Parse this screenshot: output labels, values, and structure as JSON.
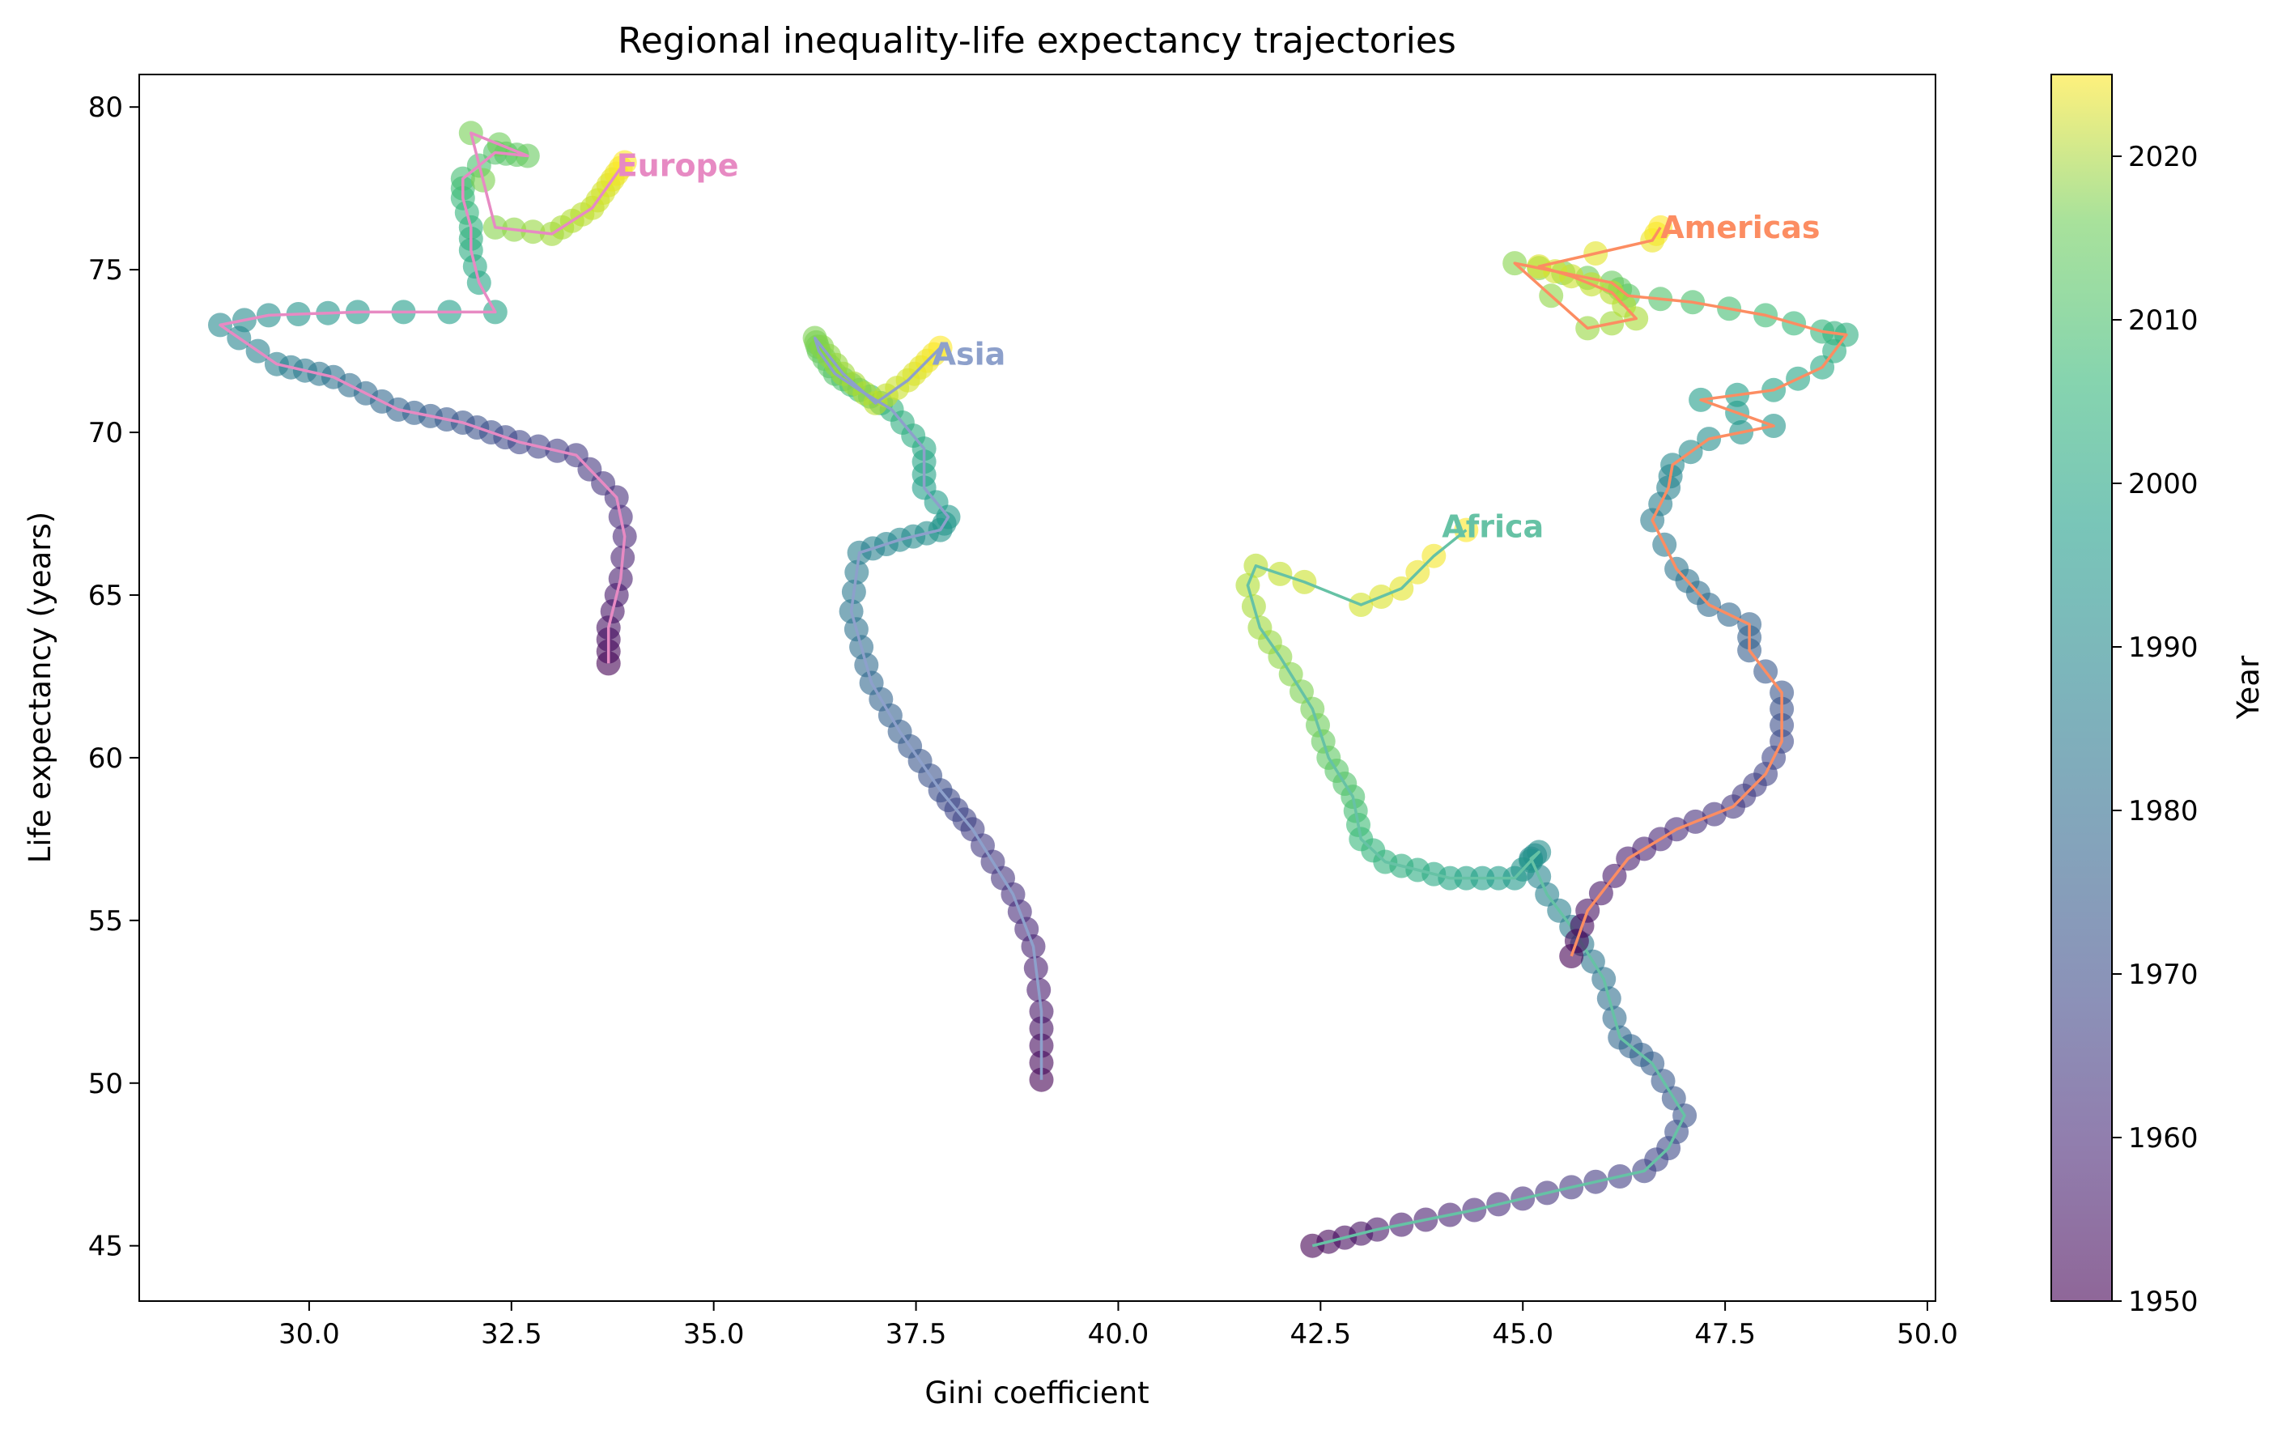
{
  "chart_data": {
    "type": "scatter",
    "title": "Regional inequality-life expectancy trajectories",
    "xlabel": "Gini coefficient",
    "ylabel": "Life expectancy (years)",
    "xlim": [
      27.9,
      50.1
    ],
    "ylim": [
      43.3,
      81.0
    ],
    "xticks": [
      30.0,
      32.5,
      35.0,
      37.5,
      40.0,
      42.5,
      45.0,
      47.5,
      50.0
    ],
    "xtick_labels": [
      "30.0",
      "32.5",
      "35.0",
      "37.5",
      "40.0",
      "42.5",
      "45.0",
      "47.5",
      "50.0"
    ],
    "yticks": [
      45,
      50,
      55,
      60,
      65,
      70,
      75,
      80
    ],
    "ytick_labels": [
      "45",
      "50",
      "55",
      "60",
      "65",
      "70",
      "75",
      "80"
    ],
    "grid": false,
    "colorbar": {
      "label": "Year",
      "colormap": "viridis",
      "alpha": 0.6,
      "range": [
        1950,
        2025
      ],
      "ticks": [
        1950,
        1960,
        1970,
        1980,
        1990,
        2000,
        2010,
        2020
      ],
      "tick_labels": [
        "1950",
        "1960",
        "1970",
        "1980",
        "1990",
        "2000",
        "2010",
        "2020"
      ]
    },
    "series": [
      {
        "name": "Europe",
        "color": "#e78ac3",
        "label_at": [
          33.8,
          78.2
        ],
        "keyframes": [
          [
            1950,
            33.7,
            62.9
          ],
          [
            1953,
            33.7,
            64.0
          ],
          [
            1956,
            33.85,
            65.5
          ],
          [
            1958,
            33.9,
            66.8
          ],
          [
            1960,
            33.8,
            68.0
          ],
          [
            1963,
            33.3,
            69.3
          ],
          [
            1966,
            32.6,
            69.7
          ],
          [
            1970,
            31.9,
            70.3
          ],
          [
            1974,
            31.1,
            70.7
          ],
          [
            1978,
            30.3,
            71.7
          ],
          [
            1982,
            29.6,
            72.1
          ],
          [
            1985,
            28.9,
            73.3
          ],
          [
            1987,
            29.5,
            73.6
          ],
          [
            1990,
            30.6,
            73.7
          ],
          [
            1993,
            32.3,
            73.7
          ],
          [
            1994,
            32.1,
            74.6
          ],
          [
            1996,
            32.0,
            75.6
          ],
          [
            1998,
            32.0,
            76.3
          ],
          [
            2000,
            31.9,
            77.2
          ],
          [
            2002,
            31.9,
            77.8
          ],
          [
            2004,
            32.3,
            78.6
          ],
          [
            2007,
            32.7,
            78.5
          ],
          [
            2009,
            32.0,
            79.2
          ],
          [
            2011,
            32.3,
            76.3
          ],
          [
            2014,
            33.0,
            76.1
          ],
          [
            2018,
            33.5,
            76.9
          ],
          [
            2021,
            33.7,
            77.6
          ],
          [
            2025,
            33.9,
            78.3
          ]
        ]
      },
      {
        "name": "Asia",
        "color": "#8da0cb",
        "label_at": [
          37.7,
          72.4
        ],
        "keyframes": [
          [
            1950,
            39.05,
            50.1
          ],
          [
            1954,
            39.05,
            52.2
          ],
          [
            1957,
            38.95,
            54.2
          ],
          [
            1960,
            38.7,
            55.8
          ],
          [
            1964,
            38.2,
            57.8
          ],
          [
            1968,
            37.8,
            59.0
          ],
          [
            1972,
            37.3,
            60.8
          ],
          [
            1975,
            36.95,
            62.3
          ],
          [
            1979,
            36.7,
            64.5
          ],
          [
            1982,
            36.8,
            66.3
          ],
          [
            1985,
            37.3,
            66.7
          ],
          [
            1988,
            37.8,
            67.0
          ],
          [
            1990,
            37.9,
            67.4
          ],
          [
            1992,
            37.6,
            68.3
          ],
          [
            1995,
            37.6,
            69.5
          ],
          [
            1998,
            37.2,
            70.7
          ],
          [
            2001,
            36.8,
            71.3
          ],
          [
            2004,
            36.5,
            71.8
          ],
          [
            2007,
            36.3,
            72.5
          ],
          [
            2010,
            36.25,
            72.9
          ],
          [
            2014,
            36.6,
            71.8
          ],
          [
            2017,
            37.0,
            70.9
          ],
          [
            2020,
            37.4,
            71.6
          ],
          [
            2025,
            37.8,
            72.6
          ]
        ]
      },
      {
        "name": "Africa",
        "color": "#66c2a5",
        "label_at": [
          44.0,
          67.1
        ],
        "keyframes": [
          [
            1950,
            42.4,
            45.0
          ],
          [
            1954,
            43.2,
            45.5
          ],
          [
            1958,
            44.4,
            46.1
          ],
          [
            1962,
            45.6,
            46.8
          ],
          [
            1965,
            46.5,
            47.3
          ],
          [
            1967,
            46.8,
            48.0
          ],
          [
            1969,
            47.0,
            49.0
          ],
          [
            1972,
            46.6,
            50.6
          ],
          [
            1975,
            46.2,
            51.4
          ],
          [
            1978,
            46.0,
            53.2
          ],
          [
            1981,
            45.6,
            54.8
          ],
          [
            1983,
            45.3,
            55.8
          ],
          [
            1985,
            45.1,
            56.9
          ],
          [
            1987,
            45.2,
            57.1
          ],
          [
            1990,
            44.9,
            56.3
          ],
          [
            1994,
            44.1,
            56.3
          ],
          [
            1998,
            43.3,
            56.8
          ],
          [
            2000,
            43.0,
            57.5
          ],
          [
            2003,
            42.9,
            58.8
          ],
          [
            2006,
            42.6,
            60.0
          ],
          [
            2009,
            42.4,
            61.5
          ],
          [
            2012,
            42.0,
            63.1
          ],
          [
            2014,
            41.75,
            64.0
          ],
          [
            2016,
            41.6,
            65.3
          ],
          [
            2017,
            41.7,
            65.9
          ],
          [
            2019,
            42.3,
            65.4
          ],
          [
            2020,
            43.0,
            64.7
          ],
          [
            2022,
            43.5,
            65.2
          ],
          [
            2024,
            43.9,
            66.2
          ],
          [
            2025,
            44.3,
            67.0
          ]
        ]
      },
      {
        "name": "Americas",
        "color": "#fc8d62",
        "label_at": [
          46.7,
          76.3
        ],
        "keyframes": [
          [
            1950,
            45.6,
            53.9
          ],
          [
            1953,
            45.8,
            55.3
          ],
          [
            1956,
            46.3,
            56.9
          ],
          [
            1959,
            46.9,
            57.8
          ],
          [
            1962,
            47.6,
            58.5
          ],
          [
            1965,
            48.0,
            59.5
          ],
          [
            1967,
            48.2,
            60.5
          ],
          [
            1970,
            48.2,
            62.0
          ],
          [
            1972,
            47.8,
            63.3
          ],
          [
            1974,
            47.8,
            64.1
          ],
          [
            1976,
            47.3,
            64.7
          ],
          [
            1979,
            46.9,
            65.8
          ],
          [
            1981,
            46.6,
            67.3
          ],
          [
            1983,
            46.8,
            68.3
          ],
          [
            1985,
            46.85,
            69.0
          ],
          [
            1987,
            47.3,
            69.8
          ],
          [
            1989,
            48.1,
            70.2
          ],
          [
            1991,
            47.2,
            71.0
          ],
          [
            1993,
            48.1,
            71.3
          ],
          [
            1995,
            48.7,
            72.0
          ],
          [
            1997,
            49.0,
            73.0
          ],
          [
            1999,
            48.7,
            73.1
          ],
          [
            2001,
            48.0,
            73.6
          ],
          [
            2003,
            47.1,
            74.0
          ],
          [
            2005,
            46.3,
            74.2
          ],
          [
            2007,
            46.1,
            74.6
          ],
          [
            2009,
            45.5,
            74.9
          ],
          [
            2011,
            44.9,
            75.2
          ],
          [
            2013,
            45.8,
            73.2
          ],
          [
            2015,
            46.4,
            73.5
          ],
          [
            2017,
            46.1,
            74.3
          ],
          [
            2019,
            45.6,
            74.8
          ],
          [
            2021,
            45.2,
            75.1
          ],
          [
            2023,
            46.6,
            75.9
          ],
          [
            2025,
            46.7,
            76.3
          ]
        ]
      }
    ]
  }
}
